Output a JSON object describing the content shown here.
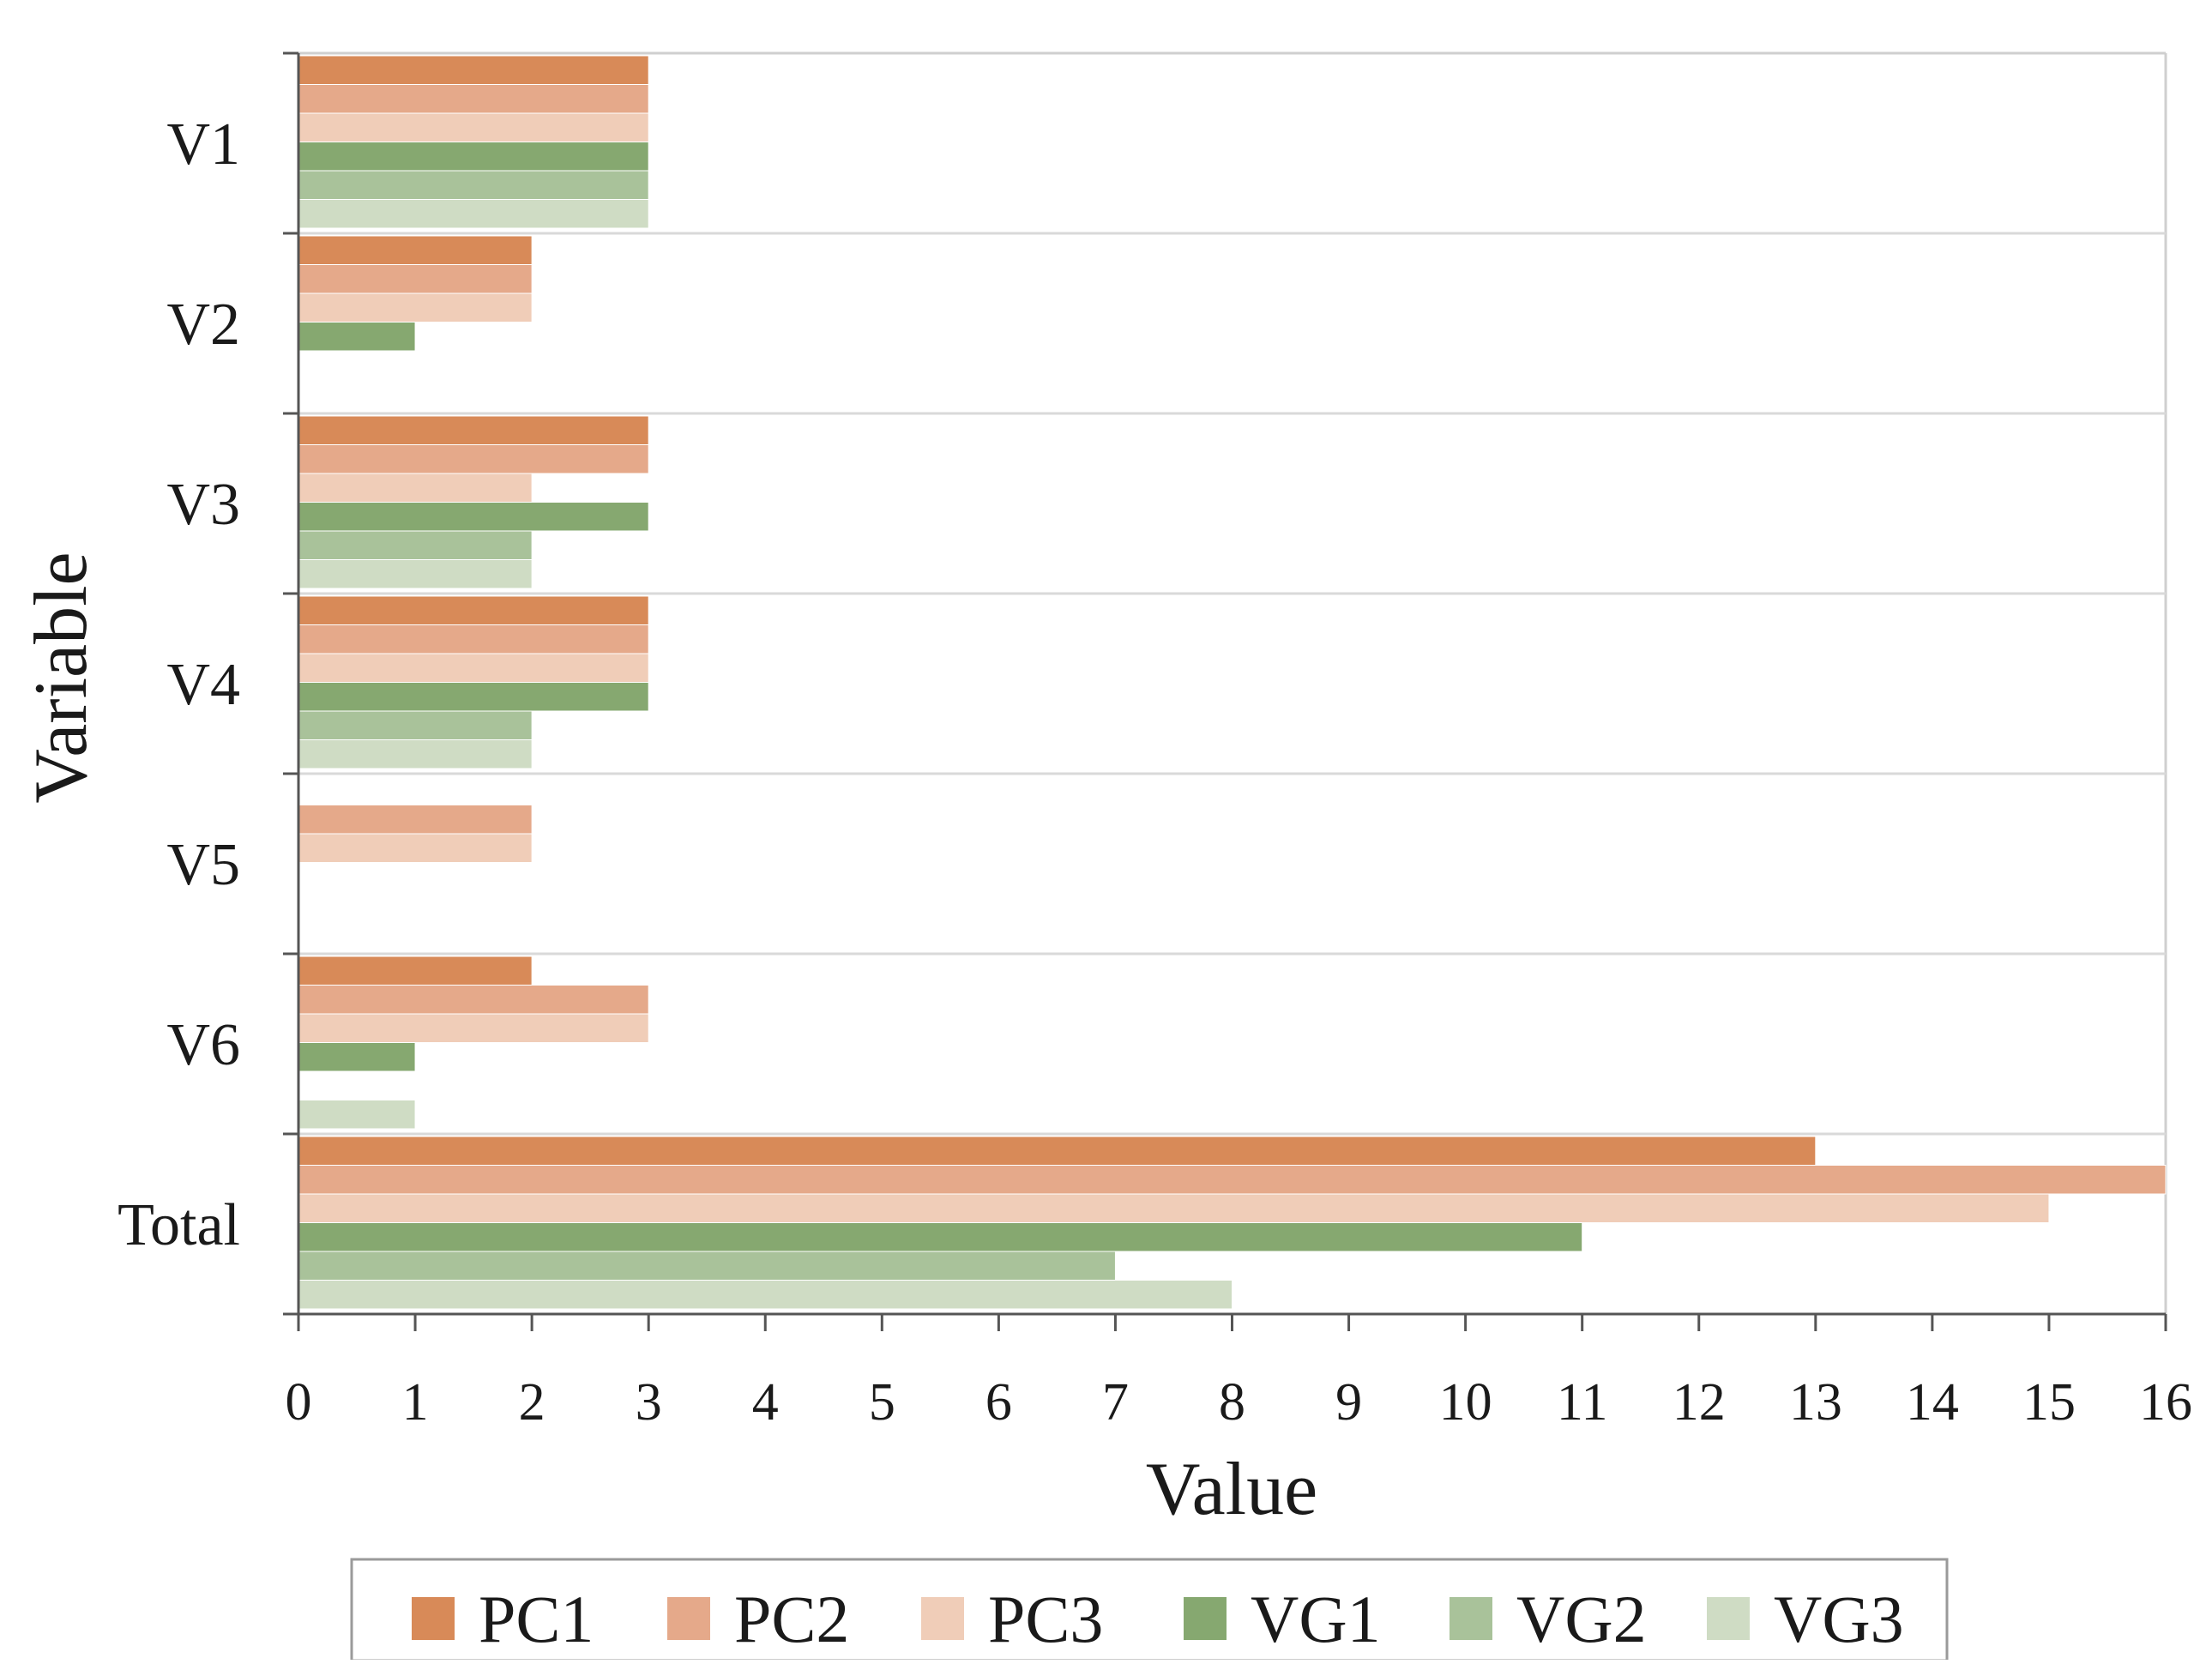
{
  "chart_data": {
    "type": "bar",
    "orientation": "horizontal",
    "title": "",
    "xlabel": "Value",
    "ylabel": "Variable",
    "xlim": [
      0,
      16
    ],
    "xticks": [
      "0",
      "1",
      "2",
      "3",
      "4",
      "5",
      "6",
      "7",
      "8",
      "9",
      "10",
      "11",
      "12",
      "13",
      "14",
      "15",
      "16"
    ],
    "categories": [
      "V1",
      "V2",
      "V3",
      "V4",
      "V5",
      "V6",
      "Total"
    ],
    "series": [
      {
        "name": "PC1",
        "color": "#d88a58",
        "values": [
          3,
          2,
          3,
          3,
          0,
          2,
          13
        ]
      },
      {
        "name": "PC2",
        "color": "#e5a98a",
        "values": [
          3,
          2,
          3,
          3,
          2,
          3,
          16
        ]
      },
      {
        "name": "PC3",
        "color": "#f0cdb8",
        "values": [
          3,
          2,
          2,
          3,
          2,
          3,
          15
        ]
      },
      {
        "name": "VG1",
        "color": "#86a870",
        "values": [
          3,
          1,
          3,
          3,
          0,
          1,
          11
        ]
      },
      {
        "name": "VG2",
        "color": "#a9c29a",
        "values": [
          3,
          0,
          2,
          2,
          0,
          0,
          7
        ]
      },
      {
        "name": "VG3",
        "color": "#cfdcc4",
        "values": [
          3,
          0,
          2,
          2,
          0,
          1,
          8
        ]
      }
    ],
    "grid": "horizontal",
    "legend_position": "bottom"
  }
}
